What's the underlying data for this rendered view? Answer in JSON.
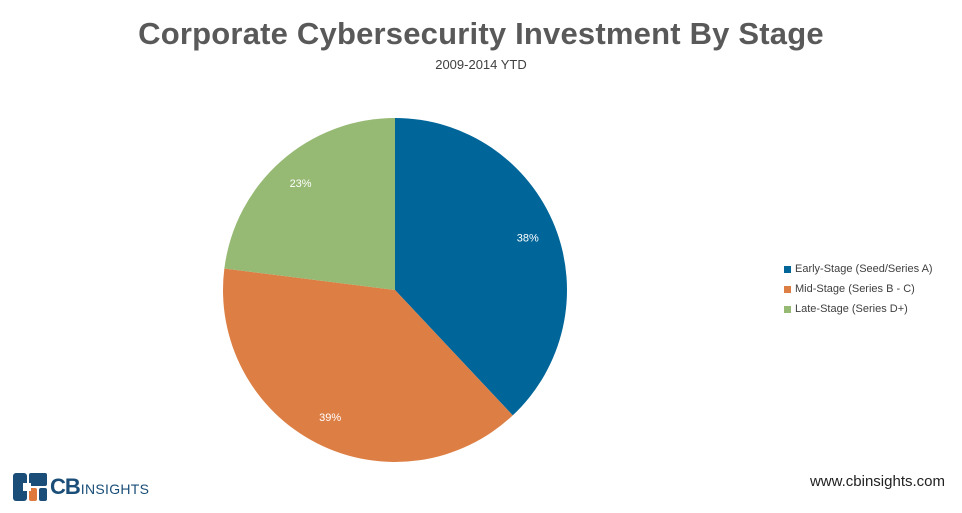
{
  "chart_data": {
    "type": "pie",
    "title": "Corporate Cybersecurity Investment By Stage",
    "subtitle": "2009-2014 YTD",
    "slices": [
      {
        "label": "Early-Stage (Seed/Series A)",
        "value": 38,
        "display": "38%",
        "color": "#00669a"
      },
      {
        "label": "Mid-Stage (Series B - C)",
        "value": 39,
        "display": "39%",
        "color": "#dd7f45"
      },
      {
        "label": "Late-Stage (Series D+)",
        "value": 23,
        "display": "23%",
        "color": "#96b973"
      }
    ],
    "legend_position": "right"
  },
  "branding": {
    "logo_cb": "CB",
    "logo_insights": "INSIGHTS",
    "url": "www.cbinsights.com",
    "logo_colors": [
      "#1a4e78",
      "#e07a3c"
    ]
  }
}
